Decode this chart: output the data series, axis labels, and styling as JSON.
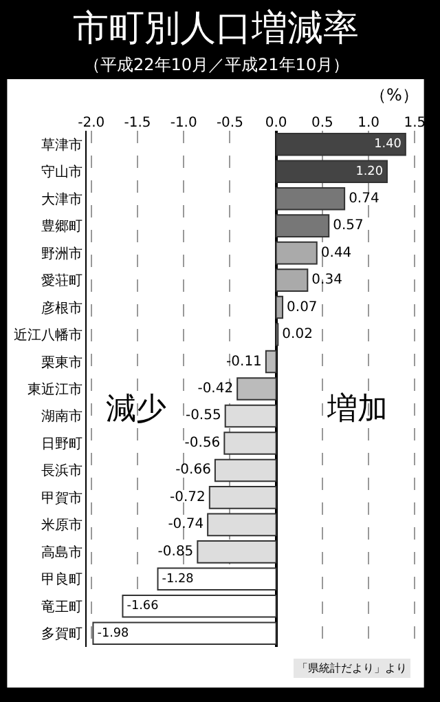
{
  "chart_data": {
    "type": "bar",
    "orientation": "horizontal",
    "title": "市町別人口増減率",
    "subtitle": "（平成22年10月／平成21年10月）",
    "categories": [
      "草津市",
      "守山市",
      "大津市",
      "豊郷町",
      "野洲市",
      "愛荘町",
      "彦根市",
      "近江八幡市",
      "栗東市",
      "東近江市",
      "湖南市",
      "日野町",
      "長浜市",
      "甲賀市",
      "米原市",
      "高島市",
      "甲良町",
      "竜王町",
      "多賀町"
    ],
    "values": [
      1.4,
      1.2,
      0.74,
      0.57,
      0.44,
      0.34,
      0.07,
      0.02,
      -0.11,
      -0.42,
      -0.55,
      -0.56,
      -0.66,
      -0.72,
      -0.74,
      -0.85,
      -1.28,
      -1.66,
      -1.98
    ],
    "colors": [
      "#444444",
      "#444444",
      "#777777",
      "#777777",
      "#aaaaaa",
      "#aaaaaa",
      "#aaaaaa",
      "#aaaaaa",
      "#bbbbbb",
      "#bbbbbb",
      "#dddddd",
      "#dddddd",
      "#dddddd",
      "#dddddd",
      "#dddddd",
      "#dddddd",
      "#ffffff",
      "#ffffff",
      "#ffffff"
    ],
    "value_labels": [
      "1.40",
      "1.20",
      "0.74",
      "0.57",
      "0.44",
      "0.34",
      "0.07",
      "0.02",
      "-0.11",
      "-0.42",
      "-0.55",
      "-0.56",
      "-0.66",
      "-0.72",
      "-0.74",
      "-0.85",
      "-1.28",
      "-1.66",
      "-1.98"
    ],
    "xlim": [
      -2.05,
      1.52
    ],
    "xticks": [
      {
        "value": -2,
        "label": "-2.0"
      },
      -1.5,
      {
        "value": -1,
        "label": "-1.0"
      },
      -0.5,
      {
        "value": 0,
        "label": "0.0"
      },
      0.5,
      {
        "value": 1,
        "label": "1.0"
      },
      1.5
    ],
    "grid": "x",
    "annotations": [
      "（%）",
      "減少",
      "増加",
      "「県統計だより」より"
    ]
  }
}
